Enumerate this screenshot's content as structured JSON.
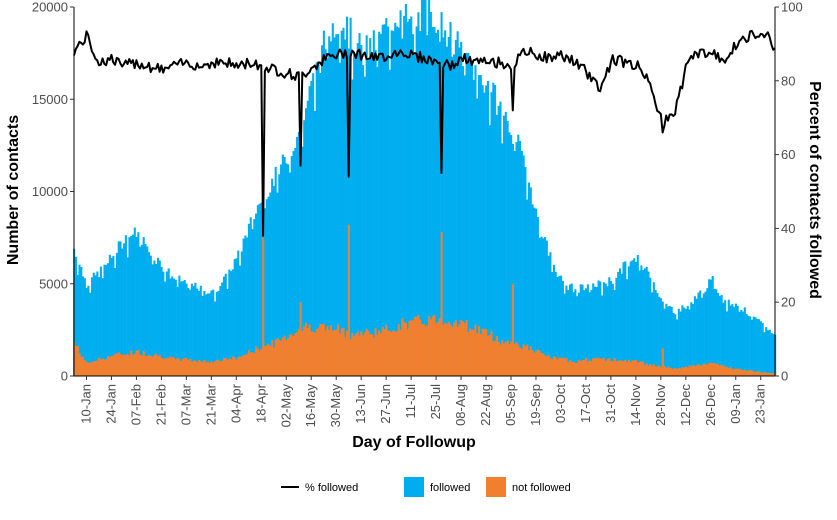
{
  "chart_data": {
    "type": "bar",
    "subtype": "stacked daily bars with secondary-axis line",
    "title": "",
    "xlabel": "Day of Followup",
    "ylabel_left": "Number of contacts",
    "ylabel_right": "Percent of contacts followed",
    "ylim_left": [
      0,
      20000
    ],
    "ylim_right": [
      0,
      100
    ],
    "yticks_left": [
      0,
      5000,
      10000,
      15000,
      20000
    ],
    "yticks_right": [
      0,
      20,
      40,
      60,
      80,
      100
    ],
    "x_tick_labels": [
      "10-Jan",
      "24-Jan",
      "07-Feb",
      "21-Feb",
      "07-Mar",
      "21-Mar",
      "04-Apr",
      "18-Apr",
      "02-May",
      "16-May",
      "30-May",
      "13-Jun",
      "27-Jun",
      "11-Jul",
      "25-Jul",
      "08-Aug",
      "22-Aug",
      "05-Sep",
      "19-Sep",
      "03-Oct",
      "17-Oct",
      "31-Oct",
      "14-Nov",
      "28-Nov",
      "12-Dec",
      "26-Dec",
      "09-Jan",
      "23-Jan"
    ],
    "grid": false,
    "legend_position": "bottom",
    "legend": [
      {
        "label": "% followed",
        "kind": "line",
        "color": "#000000"
      },
      {
        "label": "followed",
        "kind": "fill",
        "color": "#00AEEF"
      },
      {
        "label": "not followed",
        "kind": "fill",
        "color": "#F08030"
      }
    ],
    "series_colors": {
      "followed": "#00AEEF",
      "not_followed": "#F08030",
      "pct_followed": "#000000"
    },
    "weekly_points": {
      "dates": [
        "2020-01-03",
        "2020-01-10",
        "2020-01-17",
        "2020-01-24",
        "2020-01-31",
        "2020-02-07",
        "2020-02-14",
        "2020-02-21",
        "2020-02-28",
        "2020-03-07",
        "2020-03-14",
        "2020-03-21",
        "2020-03-28",
        "2020-04-04",
        "2020-04-11",
        "2020-04-18",
        "2020-04-25",
        "2020-05-02",
        "2020-05-09",
        "2020-05-16",
        "2020-05-23",
        "2020-05-30",
        "2020-06-06",
        "2020-06-13",
        "2020-06-20",
        "2020-06-27",
        "2020-07-04",
        "2020-07-11",
        "2020-07-18",
        "2020-07-25",
        "2020-08-01",
        "2020-08-08",
        "2020-08-15",
        "2020-08-22",
        "2020-08-29",
        "2020-09-05",
        "2020-09-12",
        "2020-09-19",
        "2020-09-26",
        "2020-10-03",
        "2020-10-10",
        "2020-10-17",
        "2020-10-24",
        "2020-10-31",
        "2020-11-07",
        "2020-11-14",
        "2020-11-21",
        "2020-11-28",
        "2020-12-05",
        "2020-12-12",
        "2020-12-19",
        "2020-12-26",
        "2021-01-02",
        "2021-01-09",
        "2021-01-16",
        "2021-01-23",
        "2021-01-30"
      ],
      "total_contacts": [
        6900,
        5000,
        5600,
        6400,
        7400,
        7800,
        6900,
        6000,
        5300,
        5000,
        4700,
        4500,
        5300,
        6500,
        8300,
        9800,
        10800,
        12000,
        13500,
        16000,
        18200,
        19500,
        18500,
        17500,
        18000,
        19000,
        19800,
        18800,
        20000,
        19500,
        18500,
        17500,
        16500,
        15800,
        14500,
        13200,
        11500,
        8500,
        6500,
        5000,
        4700,
        4800,
        5000,
        5200,
        6000,
        6300,
        5500,
        4000,
        3500,
        3800,
        4500,
        5200,
        4000,
        3900,
        3300,
        2800,
        2200
      ],
      "not_followed": [
        1800,
        700,
        900,
        1100,
        1200,
        1300,
        1200,
        1100,
        900,
        900,
        800,
        800,
        900,
        1000,
        1300,
        1600,
        1800,
        2200,
        2600,
        2700,
        2600,
        2500,
        2300,
        2300,
        2400,
        2500,
        2800,
        2900,
        3000,
        3100,
        3000,
        2800,
        2600,
        2300,
        1900,
        1800,
        1600,
        1300,
        1000,
        900,
        800,
        900,
        900,
        900,
        800,
        800,
        600,
        500,
        400,
        500,
        600,
        700,
        500,
        400,
        300,
        200,
        150
      ],
      "pct_followed": [
        88,
        92,
        85,
        86,
        84,
        85,
        84,
        83,
        84,
        85,
        84,
        85,
        85,
        84,
        85,
        84,
        83,
        82,
        81,
        84,
        86,
        87,
        88,
        87,
        86,
        87,
        88,
        87,
        86,
        85,
        84,
        86,
        85,
        85,
        85,
        84,
        88,
        87,
        86,
        87,
        85,
        82,
        78,
        86,
        85,
        84,
        80,
        68,
        72,
        85,
        88,
        87,
        86,
        90,
        92,
        94,
        89
      ]
    },
    "dips": [
      {
        "date": "2020-04-18",
        "pct_followed": 38,
        "not_followed": 7500
      },
      {
        "date": "2020-05-09",
        "pct_followed": 57,
        "not_followed": 4000
      },
      {
        "date": "2020-06-05",
        "pct_followed": 54,
        "not_followed": 8200
      },
      {
        "date": "2020-07-27",
        "pct_followed": 55,
        "not_followed": 7800
      },
      {
        "date": "2020-09-05",
        "pct_followed": 72,
        "not_followed": 5000
      },
      {
        "date": "2020-11-28",
        "pct_followed": 66,
        "not_followed": 1500
      }
    ]
  }
}
